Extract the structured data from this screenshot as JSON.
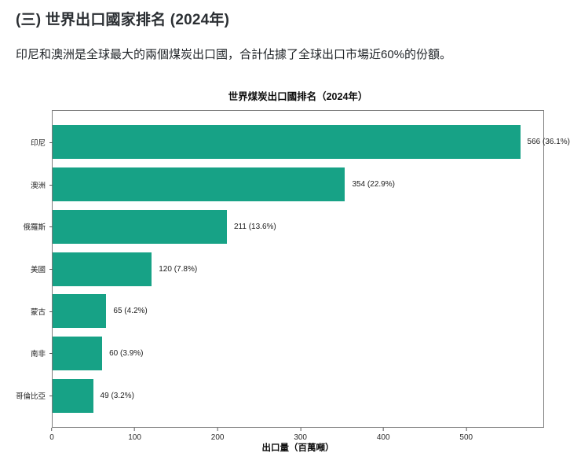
{
  "header": {
    "title": "(三) 世界出口國家排名 (2024年)",
    "subtitle": "印尼和澳洲是全球最大的兩個煤炭出口國，合計佔據了全球出口市場近60%的份額。"
  },
  "chart_data": {
    "type": "bar",
    "orientation": "horizontal",
    "title": "世界煤炭出口國排名（2024年）",
    "xlabel": "出口量（百萬噸）",
    "categories": [
      "印尼",
      "澳洲",
      "俄羅斯",
      "美國",
      "蒙古",
      "南非",
      "哥倫比亞"
    ],
    "values": [
      566,
      354,
      211,
      120,
      65,
      60,
      49
    ],
    "percent_labels": [
      "36.1%",
      "22.9%",
      "13.6%",
      "7.8%",
      "4.2%",
      "3.9%",
      "3.2%"
    ],
    "value_labels": [
      "566 (36.1%)",
      "354 (22.9%)",
      "211 (13.6%)",
      "120 (7.8%)",
      "65 (4.2%)",
      "60 (3.9%)",
      "49 (3.2%)"
    ],
    "xticks": [
      0,
      100,
      200,
      300,
      400,
      500
    ],
    "xlim": [
      0,
      594
    ],
    "grid": false,
    "legend_position": "none",
    "bar_color": "#17a286",
    "axis_border_color": "#7e7e7e"
  }
}
